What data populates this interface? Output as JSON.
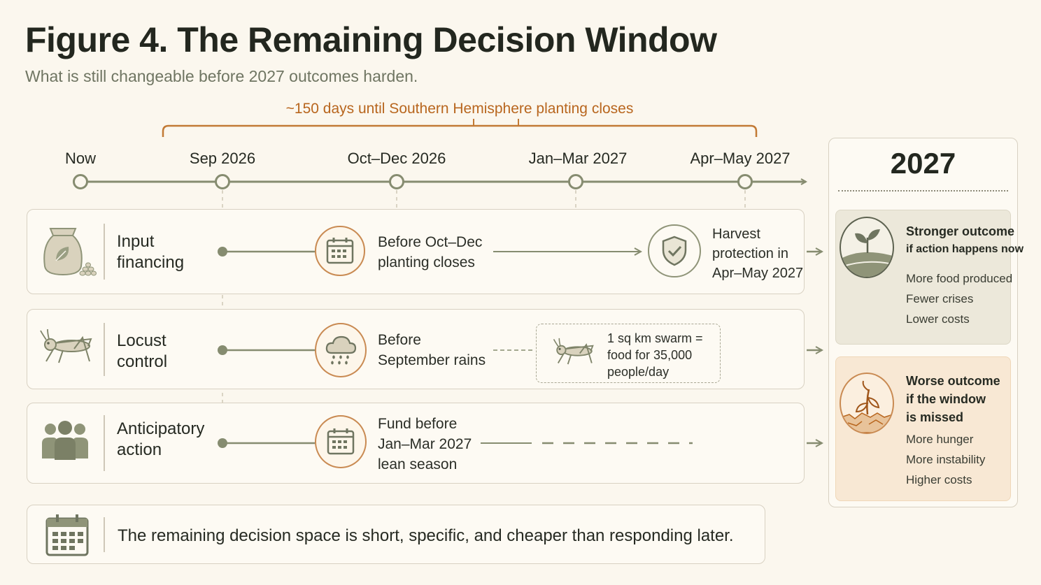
{
  "title": "Figure 4. The Remaining Decision Window",
  "subtitle": "What is still changeable before 2027 outcomes harden.",
  "window_label": "~150 days until Southern Hemisphere planting closes",
  "timeline": {
    "points": [
      "Now",
      "Sep 2026",
      "Oct–Dec 2026",
      "Jan–Mar 2027",
      "Apr–May 2027"
    ]
  },
  "rows": [
    {
      "title": [
        "Input",
        "financing"
      ],
      "icon": "seed-bag-icon",
      "milestone_icon": "calendar-icon",
      "milestone_text": [
        "Before Oct–Dec",
        "planting closes"
      ],
      "end_icon": "shield-check-icon",
      "end_text": [
        "Harvest",
        "protection in",
        "Apr–May 2027"
      ]
    },
    {
      "title": [
        "Locust",
        "control"
      ],
      "icon": "locust-icon",
      "milestone_icon": "rain-cloud-icon",
      "milestone_text": [
        "Before",
        "September rains"
      ],
      "note_icon": "locust-icon",
      "note_text": [
        "1 sq km swarm =",
        "food for 35,000",
        "people/day"
      ]
    },
    {
      "title": [
        "Anticipatory",
        "action"
      ],
      "icon": "people-group-icon",
      "milestone_icon": "calendar-icon",
      "milestone_text": [
        "Fund before",
        "Jan–Mar 2027",
        "lean season"
      ]
    }
  ],
  "outcome_panel": {
    "year": "2027",
    "strong": {
      "icon": "sprout-icon",
      "heading": [
        "Stronger outcome",
        "if action happens now"
      ],
      "items": [
        "More food produced",
        "Fewer crises",
        "Lower costs"
      ]
    },
    "worse": {
      "icon": "wilted-plant-icon",
      "heading": [
        "Worse outcome",
        "if the window",
        "is missed"
      ],
      "items": [
        "More hunger",
        "More instability",
        "Higher costs"
      ]
    }
  },
  "footer": {
    "icon": "calendar-icon",
    "text": "The remaining decision space is short, specific, and cheaper than responding later."
  },
  "colors": {
    "line": "#868c70",
    "accent": "#b8661e",
    "icon": "#8f9478",
    "ring": "#c98a52",
    "strong_bg": "#ece8da",
    "worse_bg": "#f8e8d4"
  }
}
